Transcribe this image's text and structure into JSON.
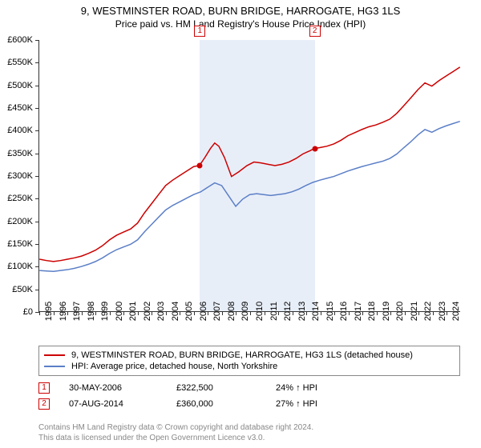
{
  "title_line1": "9, WESTMINSTER ROAD, BURN BRIDGE, HARROGATE, HG3 1LS",
  "title_line2": "Price paid vs. HM Land Registry's House Price Index (HPI)",
  "chart": {
    "type": "line",
    "ylim": [
      0,
      600000
    ],
    "ytick_step": 50000,
    "xlim_year": [
      1995,
      2025
    ],
    "ytick_labels": [
      "£0",
      "£50K",
      "£100K",
      "£150K",
      "£200K",
      "£250K",
      "£300K",
      "£350K",
      "£400K",
      "£450K",
      "£500K",
      "£550K",
      "£600K"
    ],
    "xtick_years": [
      1995,
      1996,
      1997,
      1998,
      1999,
      2000,
      2001,
      2002,
      2003,
      2004,
      2005,
      2006,
      2007,
      2008,
      2009,
      2010,
      2011,
      2012,
      2013,
      2014,
      2015,
      2016,
      2017,
      2018,
      2019,
      2020,
      2021,
      2022,
      2023,
      2024
    ],
    "background_color": "#ffffff",
    "shade_color": "#e8eef8",
    "shade_ranges": [
      [
        2006.42,
        2014.6
      ]
    ],
    "series": {
      "property": {
        "color": "#cc0000",
        "width": 1.5,
        "points": [
          [
            1995.0,
            115000
          ],
          [
            1995.5,
            112000
          ],
          [
            1996.0,
            110000
          ],
          [
            1996.5,
            112000
          ],
          [
            1997.0,
            115000
          ],
          [
            1997.5,
            118000
          ],
          [
            1998.0,
            122000
          ],
          [
            1998.5,
            128000
          ],
          [
            1999.0,
            135000
          ],
          [
            1999.5,
            145000
          ],
          [
            2000.0,
            158000
          ],
          [
            2000.5,
            168000
          ],
          [
            2001.0,
            175000
          ],
          [
            2001.5,
            182000
          ],
          [
            2002.0,
            195000
          ],
          [
            2002.5,
            218000
          ],
          [
            2003.0,
            238000
          ],
          [
            2003.5,
            258000
          ],
          [
            2004.0,
            278000
          ],
          [
            2004.5,
            290000
          ],
          [
            2005.0,
            300000
          ],
          [
            2005.5,
            310000
          ],
          [
            2006.0,
            320000
          ],
          [
            2006.42,
            322500
          ],
          [
            2006.8,
            340000
          ],
          [
            2007.2,
            360000
          ],
          [
            2007.5,
            372000
          ],
          [
            2007.8,
            365000
          ],
          [
            2008.2,
            340000
          ],
          [
            2008.7,
            298000
          ],
          [
            2009.2,
            308000
          ],
          [
            2009.8,
            322000
          ],
          [
            2010.3,
            330000
          ],
          [
            2010.8,
            328000
          ],
          [
            2011.3,
            325000
          ],
          [
            2011.8,
            322000
          ],
          [
            2012.3,
            325000
          ],
          [
            2012.8,
            330000
          ],
          [
            2013.3,
            338000
          ],
          [
            2013.8,
            348000
          ],
          [
            2014.3,
            355000
          ],
          [
            2014.6,
            360000
          ],
          [
            2015.0,
            362000
          ],
          [
            2015.5,
            365000
          ],
          [
            2016.0,
            370000
          ],
          [
            2016.5,
            378000
          ],
          [
            2017.0,
            388000
          ],
          [
            2017.5,
            395000
          ],
          [
            2018.0,
            402000
          ],
          [
            2018.5,
            408000
          ],
          [
            2019.0,
            412000
          ],
          [
            2019.5,
            418000
          ],
          [
            2020.0,
            425000
          ],
          [
            2020.5,
            438000
          ],
          [
            2021.0,
            455000
          ],
          [
            2021.5,
            472000
          ],
          [
            2022.0,
            490000
          ],
          [
            2022.5,
            505000
          ],
          [
            2023.0,
            498000
          ],
          [
            2023.5,
            510000
          ],
          [
            2024.0,
            520000
          ],
          [
            2024.5,
            530000
          ],
          [
            2025.0,
            540000
          ]
        ]
      },
      "hpi": {
        "color": "#5b7fc7",
        "width": 1.5,
        "points": [
          [
            1995.0,
            90000
          ],
          [
            1995.5,
            89000
          ],
          [
            1996.0,
            88000
          ],
          [
            1996.5,
            90000
          ],
          [
            1997.0,
            92000
          ],
          [
            1997.5,
            95000
          ],
          [
            1998.0,
            99000
          ],
          [
            1998.5,
            104000
          ],
          [
            1999.0,
            110000
          ],
          [
            1999.5,
            118000
          ],
          [
            2000.0,
            128000
          ],
          [
            2000.5,
            136000
          ],
          [
            2001.0,
            142000
          ],
          [
            2001.5,
            148000
          ],
          [
            2002.0,
            158000
          ],
          [
            2002.5,
            176000
          ],
          [
            2003.0,
            192000
          ],
          [
            2003.5,
            208000
          ],
          [
            2004.0,
            224000
          ],
          [
            2004.5,
            234000
          ],
          [
            2005.0,
            242000
          ],
          [
            2005.5,
            250000
          ],
          [
            2006.0,
            258000
          ],
          [
            2006.5,
            264000
          ],
          [
            2007.0,
            274000
          ],
          [
            2007.5,
            284000
          ],
          [
            2008.0,
            278000
          ],
          [
            2008.5,
            255000
          ],
          [
            2009.0,
            232000
          ],
          [
            2009.5,
            248000
          ],
          [
            2010.0,
            258000
          ],
          [
            2010.5,
            260000
          ],
          [
            2011.0,
            258000
          ],
          [
            2011.5,
            256000
          ],
          [
            2012.0,
            258000
          ],
          [
            2012.5,
            260000
          ],
          [
            2013.0,
            264000
          ],
          [
            2013.5,
            270000
          ],
          [
            2014.0,
            278000
          ],
          [
            2014.5,
            285000
          ],
          [
            2015.0,
            290000
          ],
          [
            2015.5,
            294000
          ],
          [
            2016.0,
            298000
          ],
          [
            2016.5,
            304000
          ],
          [
            2017.0,
            310000
          ],
          [
            2017.5,
            315000
          ],
          [
            2018.0,
            320000
          ],
          [
            2018.5,
            324000
          ],
          [
            2019.0,
            328000
          ],
          [
            2019.5,
            332000
          ],
          [
            2020.0,
            338000
          ],
          [
            2020.5,
            348000
          ],
          [
            2021.0,
            362000
          ],
          [
            2021.5,
            375000
          ],
          [
            2022.0,
            390000
          ],
          [
            2022.5,
            402000
          ],
          [
            2023.0,
            396000
          ],
          [
            2023.5,
            404000
          ],
          [
            2024.0,
            410000
          ],
          [
            2024.5,
            415000
          ],
          [
            2025.0,
            420000
          ]
        ]
      }
    },
    "sale_markers": [
      {
        "n": "1",
        "x": 2006.42,
        "y": 322500,
        "dot_color": "#cc0000"
      },
      {
        "n": "2",
        "x": 2014.6,
        "y": 360000,
        "dot_color": "#cc0000"
      }
    ]
  },
  "legend": {
    "property_label": "9, WESTMINSTER ROAD, BURN BRIDGE, HARROGATE, HG3 1LS (detached house)",
    "hpi_label": "HPI: Average price, detached house, North Yorkshire"
  },
  "sales": [
    {
      "n": "1",
      "date": "30-MAY-2006",
      "price": "£322,500",
      "pct": "24% ↑ HPI"
    },
    {
      "n": "2",
      "date": "07-AUG-2014",
      "price": "£360,000",
      "pct": "27% ↑ HPI"
    }
  ],
  "footer_line1": "Contains HM Land Registry data © Crown copyright and database right 2024.",
  "footer_line2": "This data is licensed under the Open Government Licence v3.0."
}
